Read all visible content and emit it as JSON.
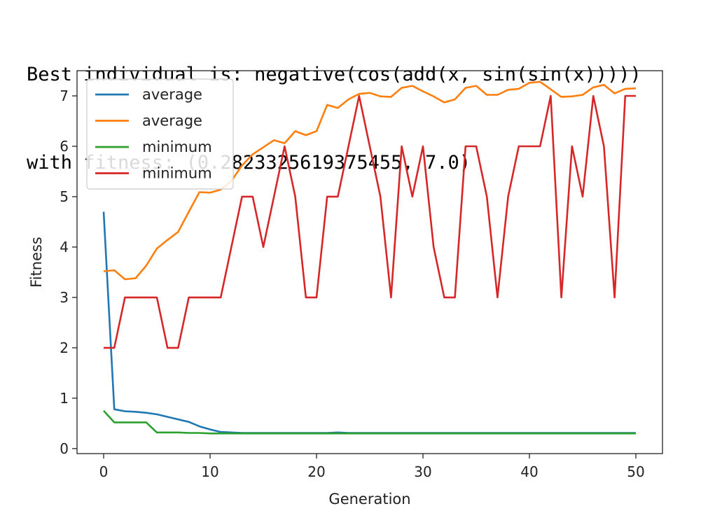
{
  "output": {
    "line1": "Best individual is: negative(cos(add(x, sin(sin(x)))))",
    "line2": "with fitness: (0.2823325619375455, 7.0)"
  },
  "chart_data": {
    "type": "line",
    "xlabel": "Generation",
    "ylabel": "Fitness",
    "xlim": [
      -2.5,
      52.5
    ],
    "ylim": [
      -0.1,
      7.5
    ],
    "xticks": [
      0,
      10,
      20,
      30,
      40,
      50
    ],
    "yticks": [
      0,
      1,
      2,
      3,
      4,
      5,
      6,
      7
    ],
    "grid": false,
    "legend_position": "top-left",
    "series": [
      {
        "name": "average",
        "color": "#1f77b4",
        "values": [
          4.7,
          0.78,
          0.74,
          0.73,
          0.71,
          0.68,
          0.63,
          0.58,
          0.53,
          0.44,
          0.38,
          0.33,
          0.32,
          0.31,
          0.31,
          0.31,
          0.31,
          0.31,
          0.31,
          0.31,
          0.31,
          0.31,
          0.32,
          0.31,
          0.31,
          0.31,
          0.31,
          0.31,
          0.31,
          0.31,
          0.31,
          0.31,
          0.31,
          0.31,
          0.31,
          0.31,
          0.31,
          0.31,
          0.31,
          0.31,
          0.31,
          0.31,
          0.31,
          0.31,
          0.31,
          0.31,
          0.31,
          0.31,
          0.31,
          0.31,
          0.31
        ]
      },
      {
        "name": "average",
        "color": "#ff7f0e",
        "values": [
          3.52,
          3.54,
          3.36,
          3.38,
          3.63,
          3.97,
          4.14,
          4.3,
          4.7,
          5.09,
          5.08,
          5.14,
          5.31,
          5.62,
          5.84,
          5.98,
          6.12,
          6.06,
          6.3,
          6.22,
          6.3,
          6.82,
          6.76,
          6.93,
          7.04,
          7.06,
          6.99,
          6.98,
          7.16,
          7.2,
          7.09,
          6.99,
          6.87,
          6.93,
          7.16,
          7.2,
          7.02,
          7.02,
          7.12,
          7.14,
          7.26,
          7.28,
          7.13,
          6.98,
          6.99,
          7.02,
          7.17,
          7.22,
          7.05,
          7.14,
          7.15
        ]
      },
      {
        "name": "minimum",
        "color": "#2ca02c",
        "values": [
          0.75,
          0.52,
          0.52,
          0.52,
          0.52,
          0.32,
          0.32,
          0.32,
          0.31,
          0.31,
          0.3,
          0.3,
          0.3,
          0.3,
          0.3,
          0.3,
          0.3,
          0.3,
          0.3,
          0.3,
          0.3,
          0.3,
          0.3,
          0.3,
          0.3,
          0.3,
          0.3,
          0.3,
          0.3,
          0.3,
          0.3,
          0.3,
          0.3,
          0.3,
          0.3,
          0.3,
          0.3,
          0.3,
          0.3,
          0.3,
          0.3,
          0.3,
          0.3,
          0.3,
          0.3,
          0.3,
          0.3,
          0.3,
          0.3,
          0.3,
          0.3
        ]
      },
      {
        "name": "minimum",
        "color": "#d62728",
        "values": [
          2,
          2,
          3,
          3,
          3,
          3,
          2,
          2,
          3,
          3,
          3,
          3,
          4,
          5,
          5,
          4,
          5,
          6,
          5,
          3,
          3,
          5,
          5,
          6,
          7,
          6,
          5,
          3,
          6,
          5,
          6,
          4,
          3,
          3,
          6,
          6,
          5,
          3,
          5,
          6,
          6,
          6,
          7,
          3,
          6,
          5,
          7,
          6,
          3,
          7,
          7
        ]
      }
    ]
  }
}
